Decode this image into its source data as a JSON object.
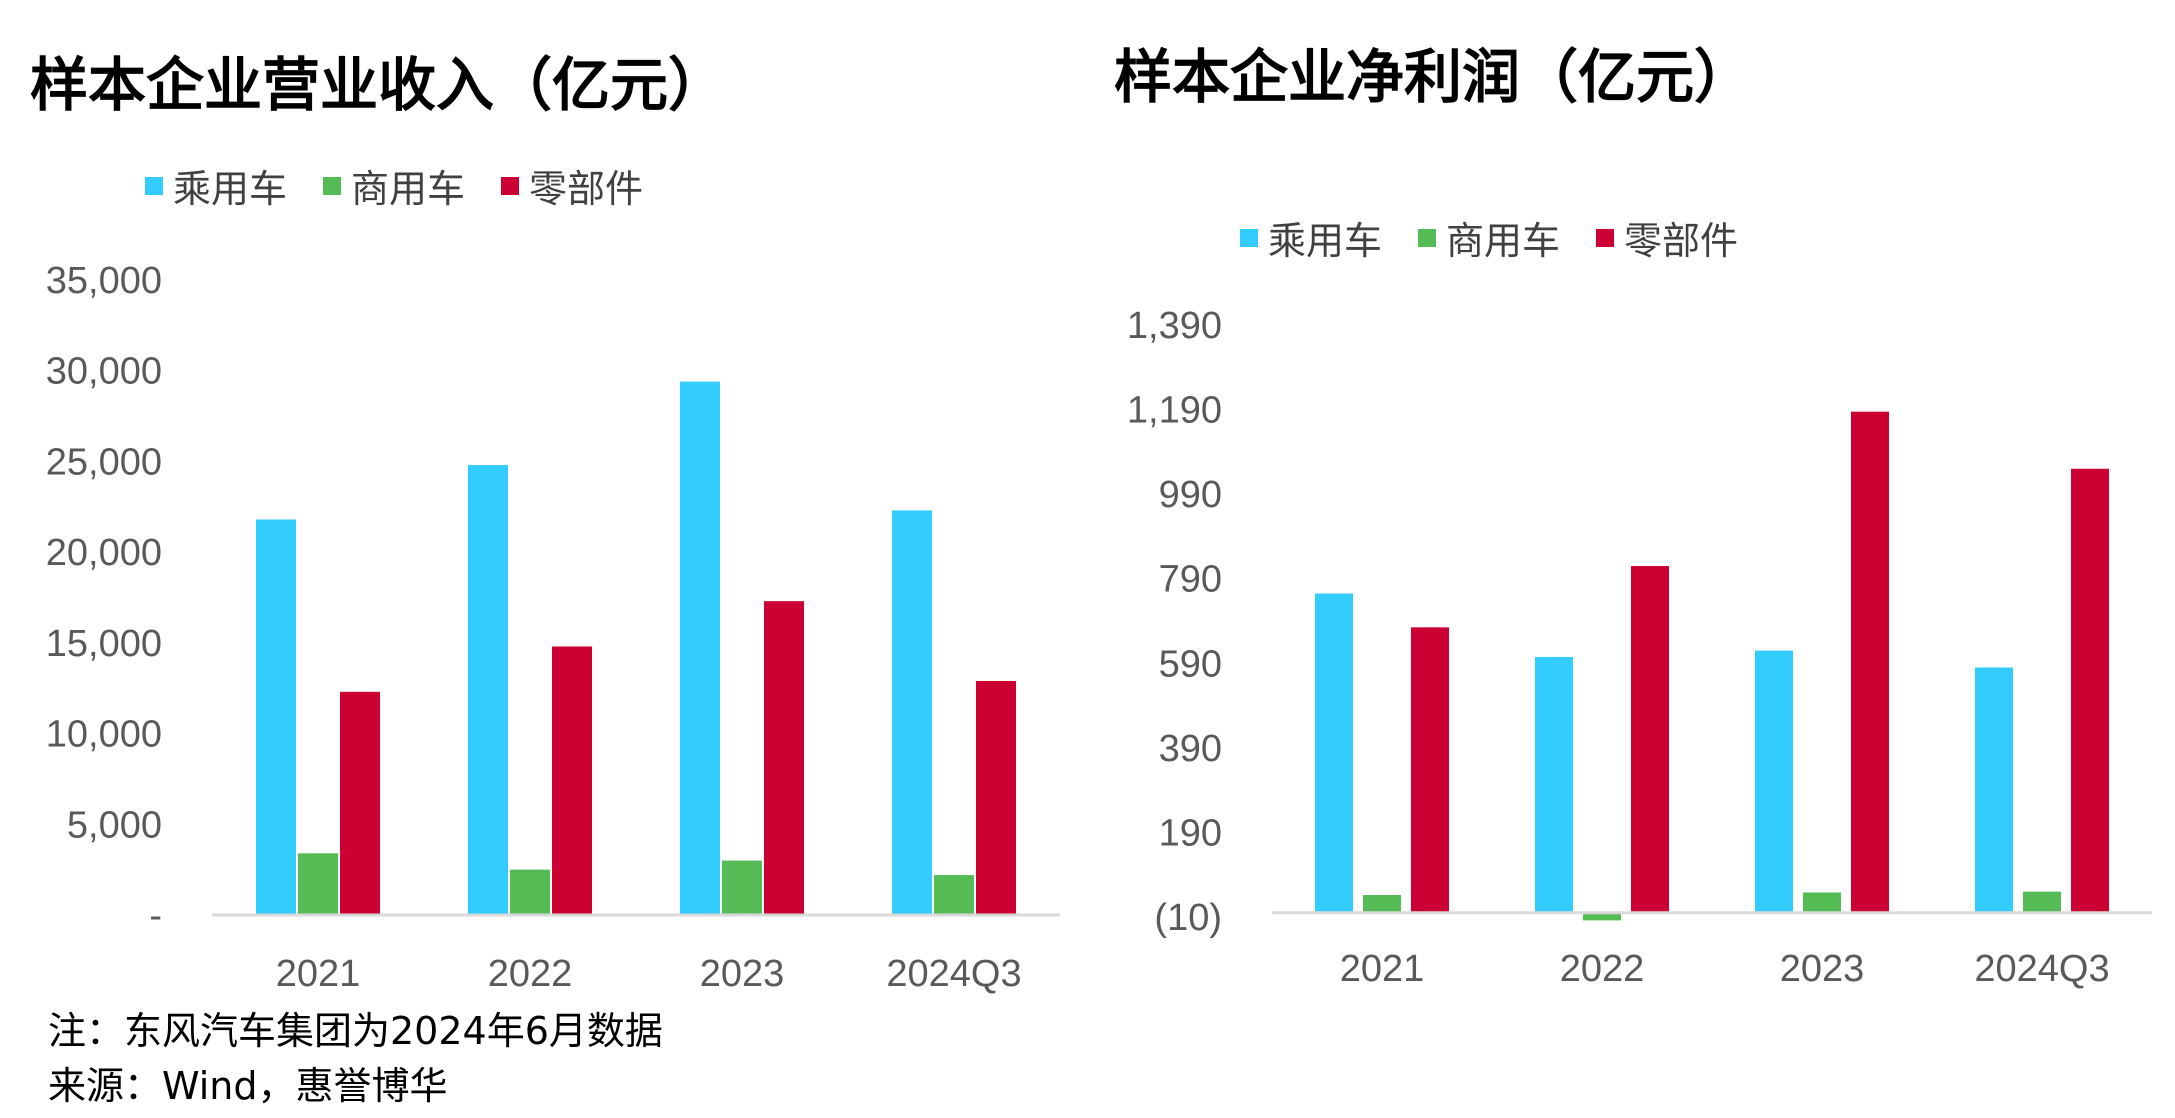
{
  "colors": {
    "passenger": "#33CCFF",
    "commercial": "#55BB55",
    "parts": "#CC0033",
    "axis": "#D9D9D9",
    "tick_text": "#595959"
  },
  "notes": {
    "note": "注：东风汽车集团为2024年6月数据",
    "source": "来源：Wind，惠誉博华"
  },
  "chart_data": [
    {
      "type": "bar",
      "title": "样本企业营业收入（亿元）",
      "categories": [
        "2021",
        "2022",
        "2023",
        "2024Q3"
      ],
      "series": [
        {
          "name": "乘用车",
          "values": [
            21800,
            24800,
            29400,
            22300
          ]
        },
        {
          "name": "商用车",
          "values": [
            3400,
            2500,
            3000,
            2200
          ]
        },
        {
          "name": "零部件",
          "values": [
            12300,
            14800,
            17300,
            12900
          ]
        }
      ],
      "ylim": [
        0,
        35000
      ],
      "yticks": [
        0,
        5000,
        10000,
        15000,
        20000,
        25000,
        30000,
        35000
      ],
      "ytick_labels": [
        "-",
        "5,000",
        "10,000",
        "15,000",
        "20,000",
        "25,000",
        "30,000",
        "35,000"
      ],
      "legend": "top-left",
      "grid": false
    },
    {
      "type": "bar",
      "title": "样本企业净利润（亿元）",
      "categories": [
        "2021",
        "2022",
        "2023",
        "2024Q3"
      ],
      "series": [
        {
          "name": "乘用车",
          "values": [
            755,
            605,
            620,
            580
          ]
        },
        {
          "name": "商用车",
          "values": [
            42,
            -18,
            48,
            50
          ]
        },
        {
          "name": "零部件",
          "values": [
            675,
            820,
            1185,
            1050
          ]
        }
      ],
      "ylim": [
        -10,
        1390
      ],
      "yticks": [
        -10,
        190,
        390,
        590,
        790,
        990,
        1190,
        1390
      ],
      "ytick_labels": [
        "(10)",
        "190",
        "390",
        "590",
        "790",
        "990",
        "1,190",
        "1,390"
      ],
      "legend": "top-left",
      "grid": false
    }
  ]
}
